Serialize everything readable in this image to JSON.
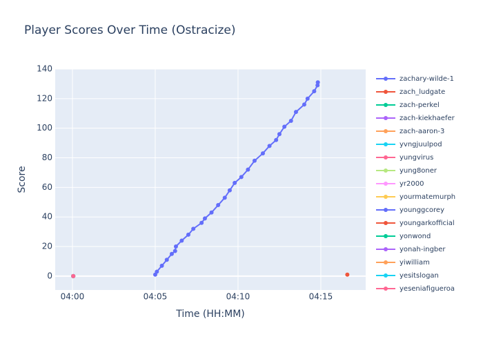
{
  "chart_data": {
    "type": "line",
    "title": "Player Scores Over Time (Ostracize)",
    "xlabel": "Time (HH:MM)",
    "ylabel": "Score",
    "xlim": [
      -1.04,
      17.71
    ],
    "ylim": [
      -9.4,
      140
    ],
    "xticks": [
      {
        "value": 0,
        "label": "04:00"
      },
      {
        "value": 5,
        "label": "04:05"
      },
      {
        "value": 10,
        "label": "04:10"
      },
      {
        "value": 15,
        "label": "04:15"
      }
    ],
    "yticks": [
      0,
      20,
      40,
      60,
      80,
      100,
      120,
      140
    ],
    "grid": true,
    "series": [
      {
        "name": "zachary-wilde-1",
        "color": "#636efa",
        "x": [
          5.0,
          5.1,
          5.4,
          5.7,
          6.0,
          6.2,
          6.25,
          6.6,
          7.0,
          7.3,
          7.8,
          8.0,
          8.4,
          8.8,
          9.2,
          9.5,
          9.8,
          10.2,
          10.6,
          11.0,
          11.5,
          11.9,
          12.3,
          12.5,
          12.8,
          13.2,
          13.5,
          14.0,
          14.2,
          14.6,
          14.8,
          14.82
        ],
        "values": [
          1,
          3,
          7,
          11,
          15,
          17,
          20,
          24,
          28,
          32,
          36,
          39,
          43,
          48,
          53,
          58,
          63,
          67,
          72,
          78,
          83,
          88,
          92,
          96,
          101,
          105,
          111,
          116,
          120,
          125,
          129,
          131
        ]
      },
      {
        "name": "zach_ludgate",
        "color": "#EF553B",
        "x": [
          16.6
        ],
        "values": [
          1
        ]
      },
      {
        "name": "zach-perkel",
        "color": "#00cc96",
        "x": [
          0.05
        ],
        "values": [
          0
        ]
      },
      {
        "name": "zach-kiekhaefer",
        "color": "#ab63fa",
        "x": [
          0.05
        ],
        "values": [
          0
        ]
      },
      {
        "name": "zach-aaron-3",
        "color": "#FFA15A",
        "x": [
          0.05
        ],
        "values": [
          0
        ]
      },
      {
        "name": "yvngjuulpod",
        "color": "#19d3f3",
        "x": [
          0.05
        ],
        "values": [
          0
        ]
      },
      {
        "name": "yungvirus",
        "color": "#FF6692",
        "x": [
          0.05
        ],
        "values": [
          0
        ]
      },
      {
        "name": "yung8oner",
        "color": "#B6E880",
        "x": [
          0.05
        ],
        "values": [
          0
        ]
      },
      {
        "name": "yr2000",
        "color": "#FF97FF",
        "x": [
          0.05
        ],
        "values": [
          0
        ]
      },
      {
        "name": "yourmatemurph",
        "color": "#FECB52",
        "x": [
          0.05
        ],
        "values": [
          0
        ]
      },
      {
        "name": "younggcorey",
        "color": "#636efa",
        "x": [
          0.05
        ],
        "values": [
          0
        ]
      },
      {
        "name": "youngarkofficial",
        "color": "#EF553B",
        "x": [
          0.05
        ],
        "values": [
          0
        ]
      },
      {
        "name": "yonwond",
        "color": "#00cc96",
        "x": [
          0.05
        ],
        "values": [
          0
        ]
      },
      {
        "name": "yonah-ingber",
        "color": "#ab63fa",
        "x": [
          0.05
        ],
        "values": [
          0
        ]
      },
      {
        "name": "yiwilliam",
        "color": "#FFA15A",
        "x": [
          0.05
        ],
        "values": [
          0
        ]
      },
      {
        "name": "yesitslogan",
        "color": "#19d3f3",
        "x": [
          0.05
        ],
        "values": [
          0
        ]
      },
      {
        "name": "yeseniafigueroa",
        "color": "#FF6692",
        "x": [
          0.05
        ],
        "values": [
          0
        ]
      }
    ]
  }
}
